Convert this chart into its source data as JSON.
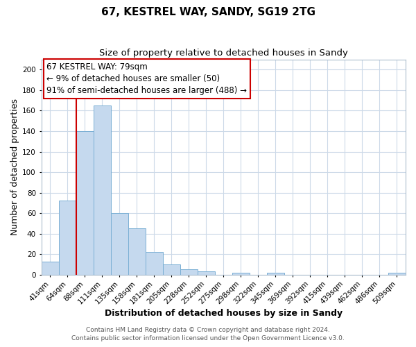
{
  "title": "67, KESTREL WAY, SANDY, SG19 2TG",
  "subtitle": "Size of property relative to detached houses in Sandy",
  "xlabel": "Distribution of detached houses by size in Sandy",
  "ylabel": "Number of detached properties",
  "bar_color": "#c5d9ee",
  "bar_edge_color": "#7aafd4",
  "categories": [
    "41sqm",
    "64sqm",
    "88sqm",
    "111sqm",
    "135sqm",
    "158sqm",
    "181sqm",
    "205sqm",
    "228sqm",
    "252sqm",
    "275sqm",
    "298sqm",
    "322sqm",
    "345sqm",
    "369sqm",
    "392sqm",
    "415sqm",
    "439sqm",
    "462sqm",
    "486sqm",
    "509sqm"
  ],
  "values": [
    13,
    72,
    140,
    165,
    60,
    45,
    22,
    10,
    5,
    3,
    0,
    2,
    0,
    2,
    0,
    0,
    0,
    0,
    0,
    0,
    2
  ],
  "ylim": [
    0,
    210
  ],
  "yticks": [
    0,
    20,
    40,
    60,
    80,
    100,
    120,
    140,
    160,
    180,
    200
  ],
  "vline_index": 2,
  "vline_color": "#cc0000",
  "annotation_line1": "67 KESTREL WAY: 79sqm",
  "annotation_line2": "← 9% of detached houses are smaller (50)",
  "annotation_line3": "91% of semi-detached houses are larger (488) →",
  "footer_line1": "Contains HM Land Registry data © Crown copyright and database right 2024.",
  "footer_line2": "Contains public sector information licensed under the Open Government Licence v3.0.",
  "bg_color": "#ffffff",
  "grid_color": "#ccd9e8",
  "title_fontsize": 11,
  "subtitle_fontsize": 9.5,
  "axis_label_fontsize": 9,
  "tick_fontsize": 7.5,
  "footer_fontsize": 6.5,
  "annot_fontsize": 8.5
}
